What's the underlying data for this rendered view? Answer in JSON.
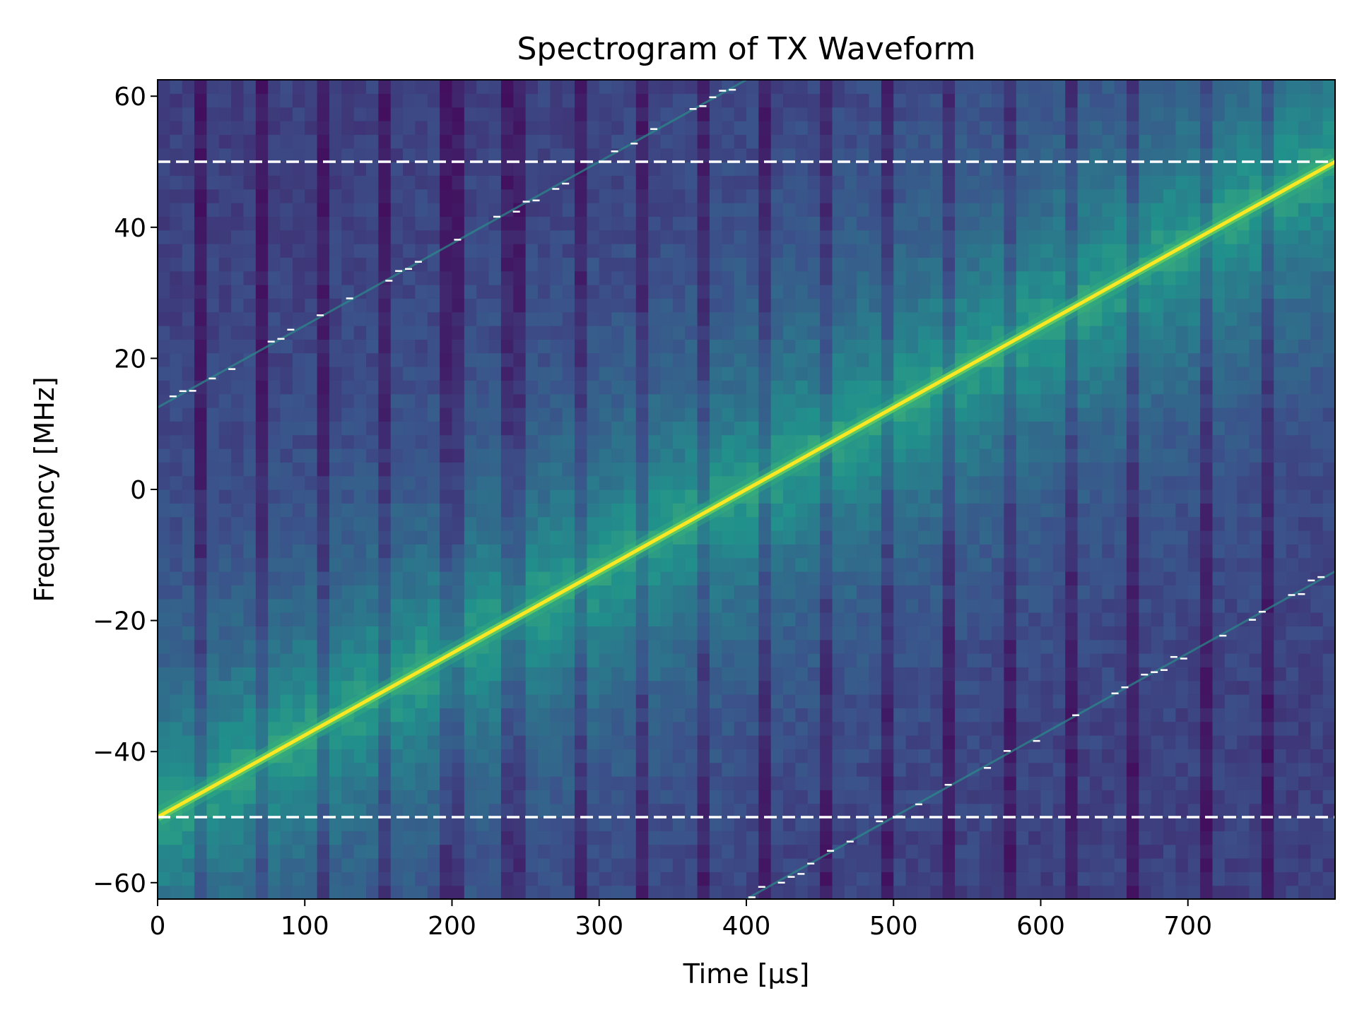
{
  "chart_data": {
    "type": "heatmap",
    "title": "Spectrogram of TX Waveform",
    "xlabel": "Time [µs]",
    "ylabel": "Frequency [MHz]",
    "xlim": [
      0,
      800
    ],
    "ylim": [
      -62.5,
      62.5
    ],
    "xticks": [
      0,
      100,
      200,
      300,
      400,
      500,
      600,
      700
    ],
    "yticks": [
      60,
      40,
      20,
      0,
      -20,
      -40,
      -60
    ],
    "xtick_labels": [
      "0",
      "100",
      "200",
      "300",
      "400",
      "500",
      "600",
      "700"
    ],
    "ytick_labels": [
      "60",
      "40",
      "20",
      "0",
      "−20",
      "−40",
      "−60"
    ],
    "colormap": "viridis",
    "grid": false,
    "chirp": {
      "t_start": 0,
      "t_end": 800,
      "f_start": -50,
      "f_end": 50
    },
    "alias_lines": [
      {
        "t_start": 0,
        "t_end": 400,
        "f_start": 12.5,
        "f_end": 62.5
      },
      {
        "t_start": 400,
        "t_end": 800,
        "f_start": -62.5,
        "f_end": -12.5
      }
    ],
    "reference_lines": [
      {
        "f": 50,
        "style": "dashed",
        "color": "#ffffff"
      },
      {
        "f": -50,
        "style": "dashed",
        "color": "#ffffff"
      }
    ],
    "dark_band_times": [
      32,
      73,
      115,
      155,
      200,
      242,
      285,
      326,
      368,
      412,
      455,
      495,
      537,
      580,
      622,
      665,
      710,
      752
    ]
  }
}
